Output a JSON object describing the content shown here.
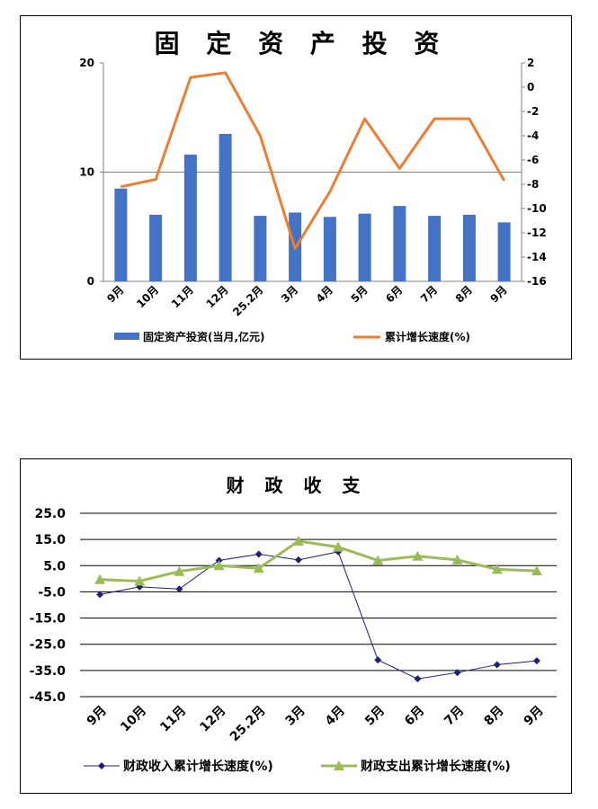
{
  "chart_data": [
    {
      "type": "bar+line",
      "title": "固 定 资 产 投 资",
      "categories": [
        "9月",
        "10月",
        "11月",
        "12月",
        "25.2月",
        "3月",
        "4月",
        "5月",
        "6月",
        "7月",
        "8月",
        "9月"
      ],
      "series": [
        {
          "name": "固定资产投资(当月,亿元)",
          "type": "bar",
          "axis": "left",
          "color": "#4472C4",
          "values": [
            8.5,
            6.1,
            11.6,
            13.5,
            6.0,
            6.3,
            5.9,
            6.2,
            6.9,
            6.0,
            6.1,
            5.4
          ]
        },
        {
          "name": "累计增长速度(%)",
          "type": "line",
          "axis": "right",
          "color": "#ED7D31",
          "values": [
            -8.2,
            -7.6,
            0.8,
            1.2,
            -4.0,
            -13.3,
            -8.6,
            -2.6,
            -6.7,
            -2.6,
            -2.6,
            -7.7
          ]
        }
      ],
      "y_left": {
        "min": 0,
        "max": 20,
        "ticks": [
          0,
          10,
          20
        ]
      },
      "y_right": {
        "min": -16,
        "max": 2,
        "ticks": [
          2,
          0,
          -2,
          -4,
          -6,
          -8,
          -10,
          -12,
          -14,
          -16
        ]
      },
      "gridline_left": 10,
      "legend": "bottom"
    },
    {
      "type": "line",
      "title": "财 政 收 支",
      "categories": [
        "9月",
        "10月",
        "11月",
        "12月",
        "25.2月",
        "3月",
        "4月",
        "5月",
        "6月",
        "7月",
        "8月",
        "9月"
      ],
      "series": [
        {
          "name": "财政收入累计增长速度(%)",
          "color": "#1F1F7A",
          "marker": "diamond",
          "values": [
            -6.0,
            -3.1,
            -3.9,
            7.0,
            9.4,
            7.2,
            10.3,
            -31.0,
            -38.2,
            -35.8,
            -32.8,
            -31.3
          ]
        },
        {
          "name": "财政支出累计增长速度(%)",
          "color": "#9BBB59",
          "marker": "triangle",
          "values": [
            -0.3,
            -0.9,
            2.8,
            5.0,
            4.0,
            14.4,
            12.1,
            7.0,
            8.6,
            7.2,
            3.6,
            3.0
          ]
        }
      ],
      "y": {
        "min": -45,
        "max": 25,
        "ticks": [
          "25.0",
          "15.0",
          "5.0",
          "-5.0",
          "-15.0",
          "-25.0",
          "-35.0",
          "-45.0"
        ]
      },
      "grid": true,
      "legend": "bottom"
    }
  ]
}
